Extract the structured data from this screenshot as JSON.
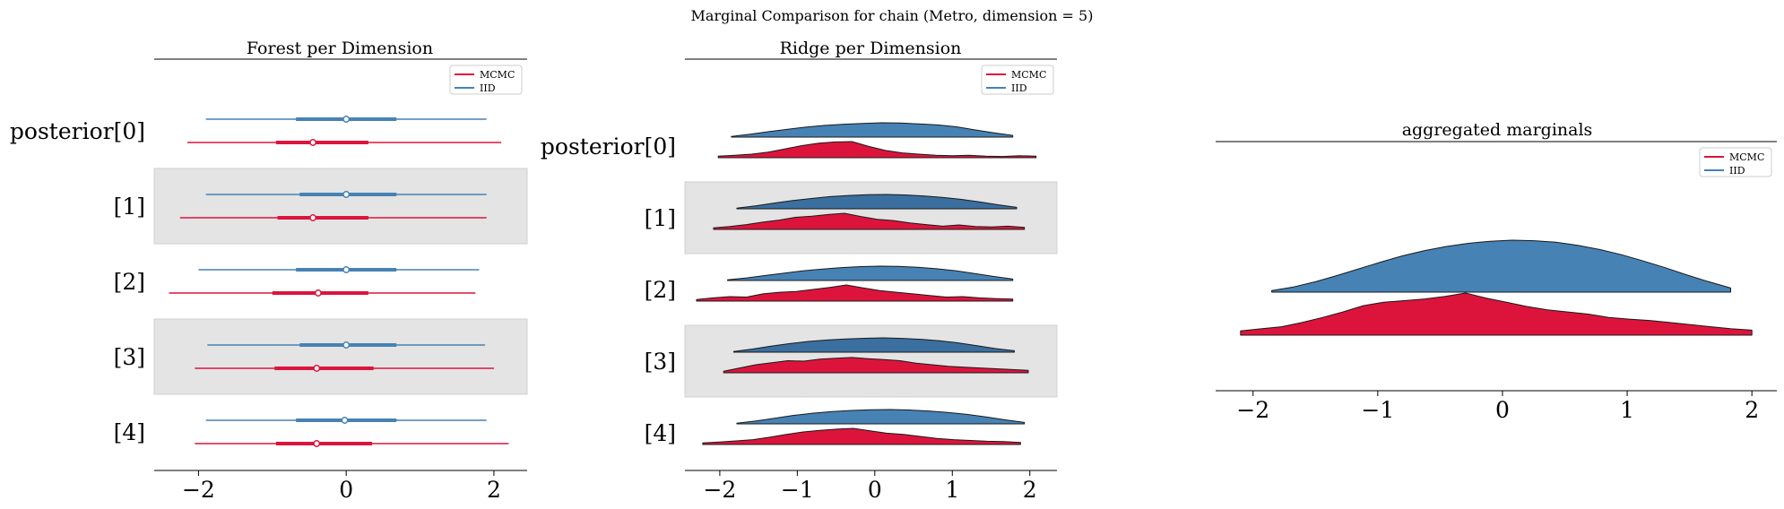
{
  "suptitle": "Marginal Comparison for chain (Metro, dimension = 5)",
  "colors": {
    "mcmc": "#dc143c",
    "iid": "#4682b4",
    "iid_band": "#3a6f9f",
    "band": "#e4e4e4"
  },
  "chart_data": [
    {
      "type": "forest",
      "title": "Forest per Dimension",
      "xlim": [
        -2.6,
        2.45
      ],
      "xticks": [
        "−2",
        "0",
        "2"
      ],
      "legend": {
        "location": "top-right",
        "entries": [
          "MCMC",
          "IID"
        ]
      },
      "rows": [
        {
          "label": "posterior[0]",
          "iid": {
            "hdi": [
              -1.9,
              1.9
            ],
            "iqr": [
              -0.68,
              0.68
            ],
            "median": 0.0
          },
          "mcmc": {
            "hdi": [
              -2.15,
              2.1
            ],
            "iqr": [
              -0.95,
              0.3
            ],
            "median": -0.45
          }
        },
        {
          "label": "[1]",
          "iid": {
            "hdi": [
              -1.9,
              1.9
            ],
            "iqr": [
              -0.63,
              0.68
            ],
            "median": 0.0
          },
          "mcmc": {
            "hdi": [
              -2.25,
              1.9
            ],
            "iqr": [
              -0.93,
              0.3
            ],
            "median": -0.45
          }
        },
        {
          "label": "[2]",
          "iid": {
            "hdi": [
              -2.0,
              1.8
            ],
            "iqr": [
              -0.68,
              0.68
            ],
            "median": 0.0
          },
          "mcmc": {
            "hdi": [
              -2.4,
              1.75
            ],
            "iqr": [
              -1.0,
              0.3
            ],
            "median": -0.38
          }
        },
        {
          "label": "[3]",
          "iid": {
            "hdi": [
              -1.88,
              1.88
            ],
            "iqr": [
              -0.63,
              0.68
            ],
            "median": 0.0
          },
          "mcmc": {
            "hdi": [
              -2.05,
              2.0
            ],
            "iqr": [
              -0.97,
              0.37
            ],
            "median": -0.4
          }
        },
        {
          "label": "[4]",
          "iid": {
            "hdi": [
              -1.9,
              1.9
            ],
            "iqr": [
              -0.68,
              0.68
            ],
            "median": -0.02
          },
          "mcmc": {
            "hdi": [
              -2.05,
              2.2
            ],
            "iqr": [
              -0.95,
              0.35
            ],
            "median": -0.4
          }
        }
      ]
    },
    {
      "type": "ridge",
      "title": "Ridge per Dimension",
      "xlim": [
        -2.45,
        2.35
      ],
      "xticks": [
        "−2",
        "−1",
        "0",
        "1",
        "2"
      ],
      "legend": {
        "location": "top-right",
        "entries": [
          "MCMC",
          "IID"
        ]
      },
      "rows": [
        {
          "label": "posterior[0]",
          "iid": {
            "range": [
              -1.85,
              1.78
            ],
            "density": [
              0.05,
              0.2,
              0.38,
              0.55,
              0.7,
              0.82,
              0.9,
              0.95,
              1.0,
              0.98,
              0.92,
              0.85,
              0.72,
              0.5,
              0.3,
              0.12
            ]
          },
          "mcmc": {
            "range": [
              -2.02,
              2.08
            ],
            "density": [
              0.1,
              0.15,
              0.22,
              0.35,
              0.55,
              0.75,
              0.9,
              0.98,
              1.0,
              0.7,
              0.45,
              0.3,
              0.22,
              0.15,
              0.12,
              0.15,
              0.1,
              0.08,
              0.12,
              0.1
            ]
          }
        },
        {
          "label": "[1]",
          "iid": {
            "range": [
              -1.78,
              1.83
            ],
            "density": [
              0.05,
              0.2,
              0.4,
              0.58,
              0.72,
              0.85,
              0.93,
              0.98,
              1.0,
              0.97,
              0.9,
              0.8,
              0.66,
              0.48,
              0.28,
              0.1
            ]
          },
          "mcmc": {
            "range": [
              -2.08,
              1.93
            ],
            "density": [
              0.1,
              0.18,
              0.3,
              0.45,
              0.58,
              0.75,
              0.82,
              0.92,
              1.0,
              0.8,
              0.62,
              0.55,
              0.4,
              0.3,
              0.2,
              0.28,
              0.18,
              0.15,
              0.2,
              0.12
            ]
          }
        },
        {
          "label": "[2]",
          "iid": {
            "range": [
              -1.9,
              1.78
            ],
            "density": [
              0.05,
              0.18,
              0.35,
              0.52,
              0.68,
              0.8,
              0.9,
              0.97,
              1.0,
              0.98,
              0.92,
              0.82,
              0.68,
              0.48,
              0.28,
              0.1
            ]
          },
          "mcmc": {
            "range": [
              -2.3,
              1.78
            ],
            "density": [
              0.1,
              0.2,
              0.28,
              0.25,
              0.45,
              0.55,
              0.6,
              0.72,
              0.85,
              1.0,
              0.82,
              0.65,
              0.55,
              0.45,
              0.35,
              0.25,
              0.28,
              0.2,
              0.15,
              0.12
            ]
          }
        },
        {
          "label": "[3]",
          "iid": {
            "range": [
              -1.82,
              1.8
            ],
            "density": [
              0.05,
              0.22,
              0.42,
              0.6,
              0.75,
              0.85,
              0.92,
              0.97,
              1.0,
              0.96,
              0.9,
              0.8,
              0.65,
              0.45,
              0.25,
              0.1
            ]
          },
          "mcmc": {
            "range": [
              -1.95,
              1.98
            ],
            "density": [
              0.1,
              0.3,
              0.5,
              0.62,
              0.75,
              0.72,
              0.85,
              0.9,
              0.95,
              0.88,
              0.82,
              0.75,
              0.6,
              0.5,
              0.4,
              0.35,
              0.3,
              0.25,
              0.2,
              0.15
            ]
          }
        },
        {
          "label": "[4]",
          "iid": {
            "range": [
              -1.78,
              1.93
            ],
            "density": [
              0.05,
              0.2,
              0.4,
              0.6,
              0.75,
              0.86,
              0.94,
              0.99,
              1.0,
              0.97,
              0.9,
              0.8,
              0.66,
              0.48,
              0.28,
              0.1
            ]
          },
          "mcmc": {
            "range": [
              -2.22,
              1.88
            ],
            "density": [
              0.1,
              0.15,
              0.22,
              0.3,
              0.45,
              0.62,
              0.78,
              0.88,
              0.95,
              1.0,
              0.85,
              0.7,
              0.62,
              0.5,
              0.38,
              0.3,
              0.25,
              0.2,
              0.18,
              0.12
            ]
          }
        }
      ]
    },
    {
      "type": "ridge",
      "title": "aggregated marginals",
      "xlim": [
        -2.3,
        2.2
      ],
      "xticks": [
        "−2",
        "−1",
        "0",
        "1",
        "2"
      ],
      "legend": {
        "location": "top-right",
        "entries": [
          "MCMC",
          "IID"
        ]
      },
      "rows": [
        {
          "label": "",
          "iid": {
            "range": [
              -1.85,
              1.83
            ],
            "density": [
              0.03,
              0.1,
              0.2,
              0.32,
              0.45,
              0.58,
              0.7,
              0.8,
              0.88,
              0.94,
              0.98,
              1.0,
              0.99,
              0.96,
              0.9,
              0.82,
              0.72,
              0.6,
              0.47,
              0.33,
              0.2,
              0.08
            ]
          },
          "mcmc": {
            "range": [
              -2.1,
              2.0
            ],
            "density": [
              0.1,
              0.15,
              0.2,
              0.3,
              0.42,
              0.55,
              0.7,
              0.78,
              0.82,
              0.86,
              0.92,
              1.0,
              0.88,
              0.78,
              0.68,
              0.6,
              0.55,
              0.5,
              0.42,
              0.38,
              0.35,
              0.3,
              0.25,
              0.2,
              0.15,
              0.12
            ]
          }
        }
      ]
    }
  ]
}
